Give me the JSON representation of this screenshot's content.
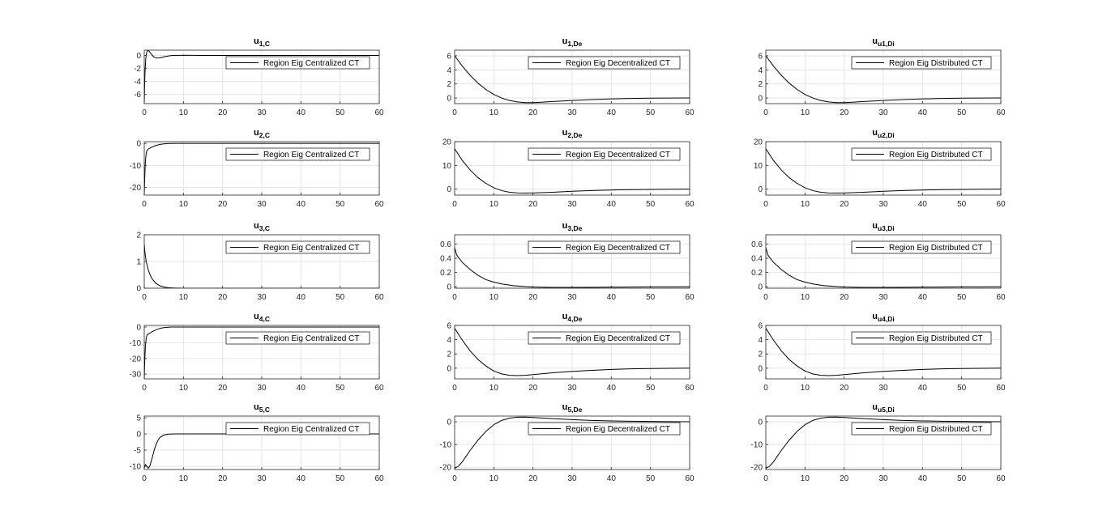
{
  "chart_data": [
    {
      "type": "line",
      "title": "u",
      "subscript": "1,C",
      "legend": "Region Eig Centralized CT",
      "legend_position": "top-right",
      "grid": true,
      "xlim": [
        0,
        60
      ],
      "ylim": [
        -7.4,
        0.8
      ],
      "xticks": [
        0,
        10,
        20,
        30,
        40,
        50,
        60
      ],
      "yticks": [
        -6,
        -4,
        -2,
        0
      ],
      "series": [
        {
          "x": [
            0,
            0.1,
            0.2,
            0.4,
            0.6,
            0.8,
            1,
            1.3,
            1.6,
            2,
            2.5,
            3,
            4,
            5,
            6,
            7,
            8,
            10,
            15,
            20,
            30,
            40,
            50,
            60
          ],
          "y": [
            -7.4,
            -4.5,
            -2.4,
            -0.4,
            0.4,
            0.75,
            0.8,
            0.6,
            0.35,
            0.05,
            -0.25,
            -0.4,
            -0.38,
            -0.22,
            -0.1,
            -0.03,
            0,
            0.02,
            0,
            0,
            0,
            0,
            0,
            0
          ]
        }
      ]
    },
    {
      "type": "line",
      "title": "u",
      "subscript": "1,De",
      "legend": "Region Eig Decentralized CT",
      "legend_position": "top-right",
      "grid": true,
      "xlim": [
        0,
        60
      ],
      "ylim": [
        -0.8,
        6.8
      ],
      "xticks": [
        0,
        10,
        20,
        30,
        40,
        50,
        60
      ],
      "yticks": [
        0,
        2,
        4,
        6
      ],
      "series": [
        {
          "x": [
            0,
            2,
            4,
            6,
            8,
            10,
            12,
            14,
            16,
            18,
            20,
            22,
            25,
            30,
            35,
            40,
            45,
            50,
            55,
            60
          ],
          "y": [
            6,
            4.5,
            3.2,
            2.1,
            1.2,
            0.5,
            0,
            -0.35,
            -0.55,
            -0.65,
            -0.65,
            -0.6,
            -0.5,
            -0.35,
            -0.22,
            -0.13,
            -0.07,
            -0.03,
            -0.01,
            0
          ]
        }
      ]
    },
    {
      "type": "line",
      "title": "u",
      "subscript": "u1,Di",
      "legend": "Region Eig Distributed CT",
      "legend_position": "top-right",
      "grid": true,
      "xlim": [
        0,
        60
      ],
      "ylim": [
        -0.8,
        6.8
      ],
      "xticks": [
        0,
        10,
        20,
        30,
        40,
        50,
        60
      ],
      "yticks": [
        0,
        2,
        4,
        6
      ],
      "series": [
        {
          "x": [
            0,
            2,
            4,
            6,
            8,
            10,
            12,
            14,
            16,
            18,
            20,
            22,
            25,
            30,
            35,
            40,
            45,
            50,
            55,
            60
          ],
          "y": [
            6,
            4.5,
            3.2,
            2.1,
            1.2,
            0.5,
            0,
            -0.35,
            -0.55,
            -0.65,
            -0.65,
            -0.6,
            -0.5,
            -0.35,
            -0.22,
            -0.13,
            -0.07,
            -0.03,
            -0.01,
            0
          ]
        }
      ]
    },
    {
      "type": "line",
      "title": "u",
      "subscript": "2,C",
      "legend": "Region Eig Centralized CT",
      "legend_position": "top-right",
      "grid": true,
      "xlim": [
        0,
        60
      ],
      "ylim": [
        -23.5,
        0.8
      ],
      "xticks": [
        0,
        10,
        20,
        30,
        40,
        50,
        60
      ],
      "yticks": [
        -20,
        -10,
        0
      ],
      "series": [
        {
          "x": [
            0,
            0.1,
            0.2,
            0.3,
            0.5,
            0.7,
            1,
            1.5,
            2,
            3,
            4,
            5,
            6,
            7,
            8,
            10,
            15,
            20,
            30,
            40,
            50,
            60
          ],
          "y": [
            -23.5,
            -17,
            -12,
            -8,
            -4.5,
            -3.2,
            -2.6,
            -2.1,
            -1.6,
            -0.9,
            -0.45,
            -0.2,
            -0.08,
            -0.03,
            0,
            0,
            0,
            0,
            0,
            0,
            0,
            0
          ]
        }
      ]
    },
    {
      "type": "line",
      "title": "u",
      "subscript": "2,De",
      "legend": "Region Eig Decentralized CT",
      "legend_position": "top-right",
      "grid": true,
      "xlim": [
        0,
        60
      ],
      "ylim": [
        -2.5,
        20
      ],
      "xticks": [
        0,
        10,
        20,
        30,
        40,
        50,
        60
      ],
      "yticks": [
        0,
        10,
        20
      ],
      "series": [
        {
          "x": [
            0,
            2,
            4,
            6,
            8,
            10,
            12,
            14,
            16,
            18,
            20,
            25,
            30,
            35,
            40,
            45,
            50,
            55,
            60
          ],
          "y": [
            17,
            12,
            8,
            4.8,
            2.4,
            0.6,
            -0.6,
            -1.3,
            -1.6,
            -1.65,
            -1.6,
            -1.3,
            -0.9,
            -0.6,
            -0.35,
            -0.2,
            -0.1,
            -0.04,
            0
          ]
        }
      ]
    },
    {
      "type": "line",
      "title": "u",
      "subscript": "u2,Di",
      "legend": "Region Eig Distributed CT",
      "legend_position": "top-right",
      "grid": true,
      "xlim": [
        0,
        60
      ],
      "ylim": [
        -2.5,
        20
      ],
      "xticks": [
        0,
        10,
        20,
        30,
        40,
        50,
        60
      ],
      "yticks": [
        0,
        10,
        20
      ],
      "series": [
        {
          "x": [
            0,
            2,
            4,
            6,
            8,
            10,
            12,
            14,
            16,
            18,
            20,
            25,
            30,
            35,
            40,
            45,
            50,
            55,
            60
          ],
          "y": [
            17,
            12,
            8,
            4.8,
            2.4,
            0.6,
            -0.6,
            -1.3,
            -1.6,
            -1.65,
            -1.6,
            -1.3,
            -0.9,
            -0.6,
            -0.35,
            -0.2,
            -0.1,
            -0.04,
            0
          ]
        }
      ]
    },
    {
      "type": "line",
      "title": "u",
      "subscript": "3,C",
      "legend": "Region Eig Centralized CT",
      "legend_position": "top-right",
      "grid": true,
      "xlim": [
        0,
        60
      ],
      "ylim": [
        0,
        2
      ],
      "xticks": [
        0,
        10,
        20,
        30,
        40,
        50,
        60
      ],
      "yticks": [
        0,
        1,
        2
      ],
      "series": [
        {
          "x": [
            0,
            0.1,
            0.3,
            0.5,
            1,
            1.5,
            2,
            3,
            4,
            5,
            6,
            7,
            8,
            10,
            15,
            20,
            30,
            40,
            50,
            60
          ],
          "y": [
            1.65,
            1.45,
            1.2,
            1.0,
            0.7,
            0.5,
            0.35,
            0.18,
            0.09,
            0.045,
            0.02,
            0.01,
            0.005,
            0,
            0,
            0,
            0,
            0,
            0,
            0
          ]
        }
      ]
    },
    {
      "type": "line",
      "title": "u",
      "subscript": "3,De",
      "legend": "Region Eig Decentralized CT",
      "legend_position": "top-right",
      "grid": true,
      "xlim": [
        0,
        60
      ],
      "ylim": [
        -0.02,
        0.73
      ],
      "xticks": [
        0,
        10,
        20,
        30,
        40,
        50,
        60
      ],
      "yticks": [
        0,
        0.2,
        0.4,
        0.6
      ],
      "series": [
        {
          "x": [
            0,
            0.5,
            1,
            2,
            4,
            6,
            8,
            10,
            12,
            15,
            18,
            20,
            25,
            30,
            35,
            40,
            45,
            50,
            55,
            60
          ],
          "y": [
            0.55,
            0.45,
            0.41,
            0.34,
            0.24,
            0.16,
            0.1,
            0.065,
            0.04,
            0.015,
            0.002,
            -0.004,
            -0.01,
            -0.01,
            -0.008,
            -0.006,
            -0.004,
            -0.002,
            -0.001,
            0
          ]
        }
      ]
    },
    {
      "type": "line",
      "title": "u",
      "subscript": "u3,Di",
      "legend": "Region Eig Distributed CT",
      "legend_position": "top-right",
      "grid": true,
      "xlim": [
        0,
        60
      ],
      "ylim": [
        -0.02,
        0.73
      ],
      "xticks": [
        0,
        10,
        20,
        30,
        40,
        50,
        60
      ],
      "yticks": [
        0,
        0.2,
        0.4,
        0.6
      ],
      "series": [
        {
          "x": [
            0,
            0.5,
            1,
            2,
            4,
            6,
            8,
            10,
            12,
            15,
            18,
            20,
            25,
            30,
            35,
            40,
            45,
            50,
            55,
            60
          ],
          "y": [
            0.55,
            0.45,
            0.41,
            0.34,
            0.24,
            0.16,
            0.1,
            0.065,
            0.04,
            0.015,
            0.002,
            -0.004,
            -0.01,
            -0.01,
            -0.008,
            -0.006,
            -0.004,
            -0.002,
            -0.001,
            0
          ]
        }
      ]
    },
    {
      "type": "line",
      "title": "u",
      "subscript": "4,C",
      "legend": "Region Eig Centralized CT",
      "legend_position": "top-right",
      "grid": true,
      "xlim": [
        0,
        60
      ],
      "ylim": [
        -33,
        1
      ],
      "xticks": [
        0,
        10,
        20,
        30,
        40,
        50,
        60
      ],
      "yticks": [
        -30,
        -20,
        -10,
        0
      ],
      "series": [
        {
          "x": [
            0,
            0.1,
            0.2,
            0.3,
            0.5,
            0.7,
            1,
            1.5,
            2,
            3,
            4,
            5,
            6,
            7,
            8,
            10,
            15,
            20,
            30,
            40,
            50,
            60
          ],
          "y": [
            -33,
            -24,
            -17,
            -12,
            -7,
            -5.2,
            -4.5,
            -3.8,
            -3.0,
            -1.8,
            -0.9,
            -0.4,
            -0.15,
            -0.05,
            0,
            0,
            0,
            0,
            0,
            0,
            0,
            0
          ]
        }
      ]
    },
    {
      "type": "line",
      "title": "u",
      "subscript": "4,De",
      "legend": "Region Eig Decentralized CT",
      "legend_position": "top-right",
      "grid": true,
      "xlim": [
        0,
        60
      ],
      "ylim": [
        -1.5,
        6
      ],
      "xticks": [
        0,
        10,
        20,
        30,
        40,
        50,
        60
      ],
      "yticks": [
        0,
        2,
        4,
        6
      ],
      "series": [
        {
          "x": [
            0,
            2,
            4,
            6,
            8,
            10,
            12,
            14,
            16,
            18,
            20,
            25,
            30,
            35,
            40,
            45,
            50,
            55,
            60
          ],
          "y": [
            5.6,
            3.9,
            2.4,
            1.2,
            0.3,
            -0.4,
            -0.8,
            -1.0,
            -1.05,
            -1.0,
            -0.9,
            -0.65,
            -0.45,
            -0.3,
            -0.18,
            -0.1,
            -0.05,
            -0.02,
            0
          ]
        }
      ]
    },
    {
      "type": "line",
      "title": "u",
      "subscript": "u4,Di",
      "legend": "Region Eig Distributed CT",
      "legend_position": "top-right",
      "grid": true,
      "xlim": [
        0,
        60
      ],
      "ylim": [
        -1.5,
        6
      ],
      "xticks": [
        0,
        10,
        20,
        30,
        40,
        50,
        60
      ],
      "yticks": [
        0,
        2,
        4,
        6
      ],
      "series": [
        {
          "x": [
            0,
            2,
            4,
            6,
            8,
            10,
            12,
            14,
            16,
            18,
            20,
            25,
            30,
            35,
            40,
            45,
            50,
            55,
            60
          ],
          "y": [
            5.6,
            3.9,
            2.4,
            1.2,
            0.3,
            -0.4,
            -0.8,
            -1.0,
            -1.05,
            -1.0,
            -0.9,
            -0.65,
            -0.45,
            -0.3,
            -0.18,
            -0.1,
            -0.05,
            -0.02,
            0
          ]
        }
      ]
    },
    {
      "type": "line",
      "title": "u",
      "subscript": "5,C",
      "legend": "Region Eig Centralized CT",
      "legend_position": "top-right",
      "grid": true,
      "xlim": [
        0,
        60
      ],
      "ylim": [
        -11,
        5.5
      ],
      "xticks": [
        0,
        10,
        20,
        30,
        40,
        50,
        60
      ],
      "yticks": [
        -10,
        -5,
        0,
        5
      ],
      "series": [
        {
          "x": [
            0,
            0.3,
            0.6,
            1,
            1.4,
            2,
            2.5,
            3,
            3.5,
            4,
            5,
            6,
            7,
            8,
            10,
            15,
            20,
            30,
            40,
            50,
            60
          ],
          "y": [
            -10.5,
            -9.5,
            -9.9,
            -10.6,
            -10.0,
            -7.5,
            -5.2,
            -3.3,
            -2.0,
            -1.1,
            -0.35,
            -0.1,
            -0.02,
            0,
            0,
            0,
            0,
            0,
            0,
            0,
            0
          ]
        }
      ]
    },
    {
      "type": "line",
      "title": "u",
      "subscript": "5,De",
      "legend": "Region Eig Decentralized CT",
      "legend_position": "top-right",
      "grid": true,
      "xlim": [
        0,
        60
      ],
      "ylim": [
        -21,
        2.5
      ],
      "xticks": [
        0,
        10,
        20,
        30,
        40,
        50,
        60
      ],
      "yticks": [
        -20,
        -10,
        0
      ],
      "series": [
        {
          "x": [
            0,
            1,
            2,
            4,
            6,
            8,
            10,
            12,
            14,
            16,
            18,
            20,
            25,
            30,
            35,
            40,
            45,
            50,
            55,
            60
          ],
          "y": [
            -20.5,
            -19.5,
            -17.5,
            -12.5,
            -8,
            -4.2,
            -1.3,
            0.6,
            1.6,
            2.0,
            2.05,
            1.9,
            1.4,
            0.95,
            0.6,
            0.38,
            0.22,
            0.12,
            0.06,
            0.02
          ]
        }
      ]
    },
    {
      "type": "line",
      "title": "u",
      "subscript": "u5,Di",
      "legend": "Region Eig Distributed CT",
      "legend_position": "top-right",
      "grid": true,
      "xlim": [
        0,
        60
      ],
      "ylim": [
        -21,
        2.5
      ],
      "xticks": [
        0,
        10,
        20,
        30,
        40,
        50,
        60
      ],
      "yticks": [
        -20,
        -10,
        0
      ],
      "series": [
        {
          "x": [
            0,
            1,
            2,
            4,
            6,
            8,
            10,
            12,
            14,
            16,
            18,
            20,
            25,
            30,
            35,
            40,
            45,
            50,
            55,
            60
          ],
          "y": [
            -20.5,
            -19.5,
            -17.5,
            -12.5,
            -8,
            -4.2,
            -1.3,
            0.6,
            1.6,
            2.0,
            2.05,
            1.9,
            1.4,
            0.95,
            0.6,
            0.38,
            0.22,
            0.12,
            0.06,
            0.02
          ]
        }
      ]
    }
  ]
}
